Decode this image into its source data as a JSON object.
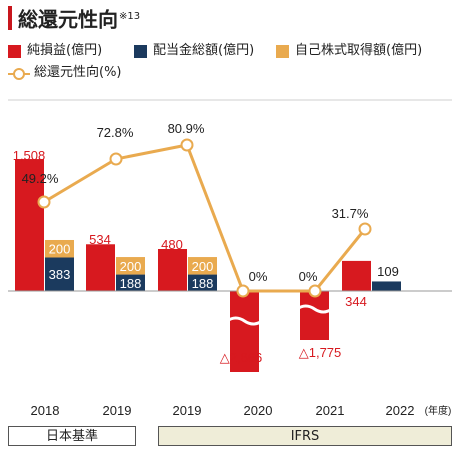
{
  "title": "総還元性向",
  "title_note": "※13",
  "legend": [
    {
      "label": "純損益(億円)",
      "color": "#d7191f",
      "kind": "bar"
    },
    {
      "label": "配当金総額(億円)",
      "color": "#1b3a5e",
      "kind": "bar"
    },
    {
      "label": "自己株式取得額(億円)",
      "color": "#e9aa4f",
      "kind": "bar"
    },
    {
      "label": "総還元性向(%)",
      "color": "#e9aa4f",
      "kind": "line"
    }
  ],
  "year_unit": "(年度)",
  "basis": [
    {
      "label": "日本基準",
      "fill": "#ffffff"
    },
    {
      "label": "IFRS",
      "fill": "#efedd8"
    }
  ],
  "chart_data": {
    "type": "bar",
    "categories": [
      "2018",
      "2019",
      "2019",
      "2020",
      "2021",
      "2022"
    ],
    "series": [
      {
        "name": "純損益(億円)",
        "values": [
          1508,
          534,
          480,
          -2866,
          -1775,
          344
        ],
        "labels": [
          "1,508",
          "534",
          "480",
          "△2,866",
          "△1,775",
          "344"
        ]
      },
      {
        "name": "配当金総額(億円)",
        "values": [
          383,
          188,
          188,
          0,
          0,
          109
        ],
        "labels": [
          "383",
          "188",
          "188",
          "",
          "",
          "109"
        ]
      },
      {
        "name": "自己株式取得額(億円)",
        "values": [
          200,
          200,
          200,
          0,
          0,
          0
        ],
        "labels": [
          "200",
          "200",
          "200",
          "",
          "",
          ""
        ]
      },
      {
        "name": "総還元性向(%)",
        "type": "line",
        "values": [
          49.2,
          72.8,
          80.9,
          0,
          0,
          31.7
        ],
        "labels": [
          "49.2%",
          "72.8%",
          "80.9%",
          "0%",
          "0%",
          "31.7%"
        ]
      }
    ],
    "negative_bars_truncated": true,
    "colors": {
      "net": "#d7191f",
      "dividend": "#1b3a5e",
      "buyback": "#e9aa4f",
      "line": "#e9aa4f"
    }
  }
}
